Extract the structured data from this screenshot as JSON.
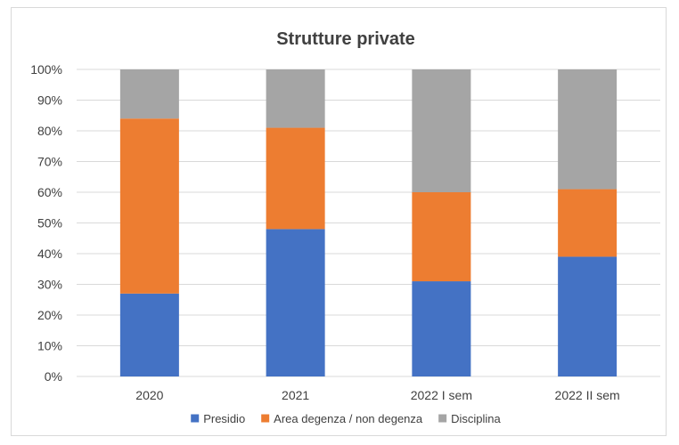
{
  "chart_data": {
    "type": "bar",
    "stacked": true,
    "title": "Strutture private",
    "categories": [
      "2020",
      "2021",
      "2022 I sem",
      "2022 II sem"
    ],
    "series": [
      {
        "name": "Presidio",
        "color": "#4472C4",
        "values": [
          27,
          48,
          31,
          39
        ]
      },
      {
        "name": "Area degenza / non degenza",
        "color": "#ED7D31",
        "values": [
          57,
          33,
          29,
          22
        ]
      },
      {
        "name": "Disciplina",
        "color": "#A5A5A5",
        "values": [
          16,
          19,
          40,
          39
        ]
      }
    ],
    "ylim": [
      0,
      100
    ],
    "yticks": [
      "0%",
      "10%",
      "20%",
      "30%",
      "40%",
      "50%",
      "60%",
      "70%",
      "80%",
      "90%",
      "100%"
    ],
    "grid": true,
    "legend": "bottom",
    "xlabel": "",
    "ylabel": ""
  }
}
